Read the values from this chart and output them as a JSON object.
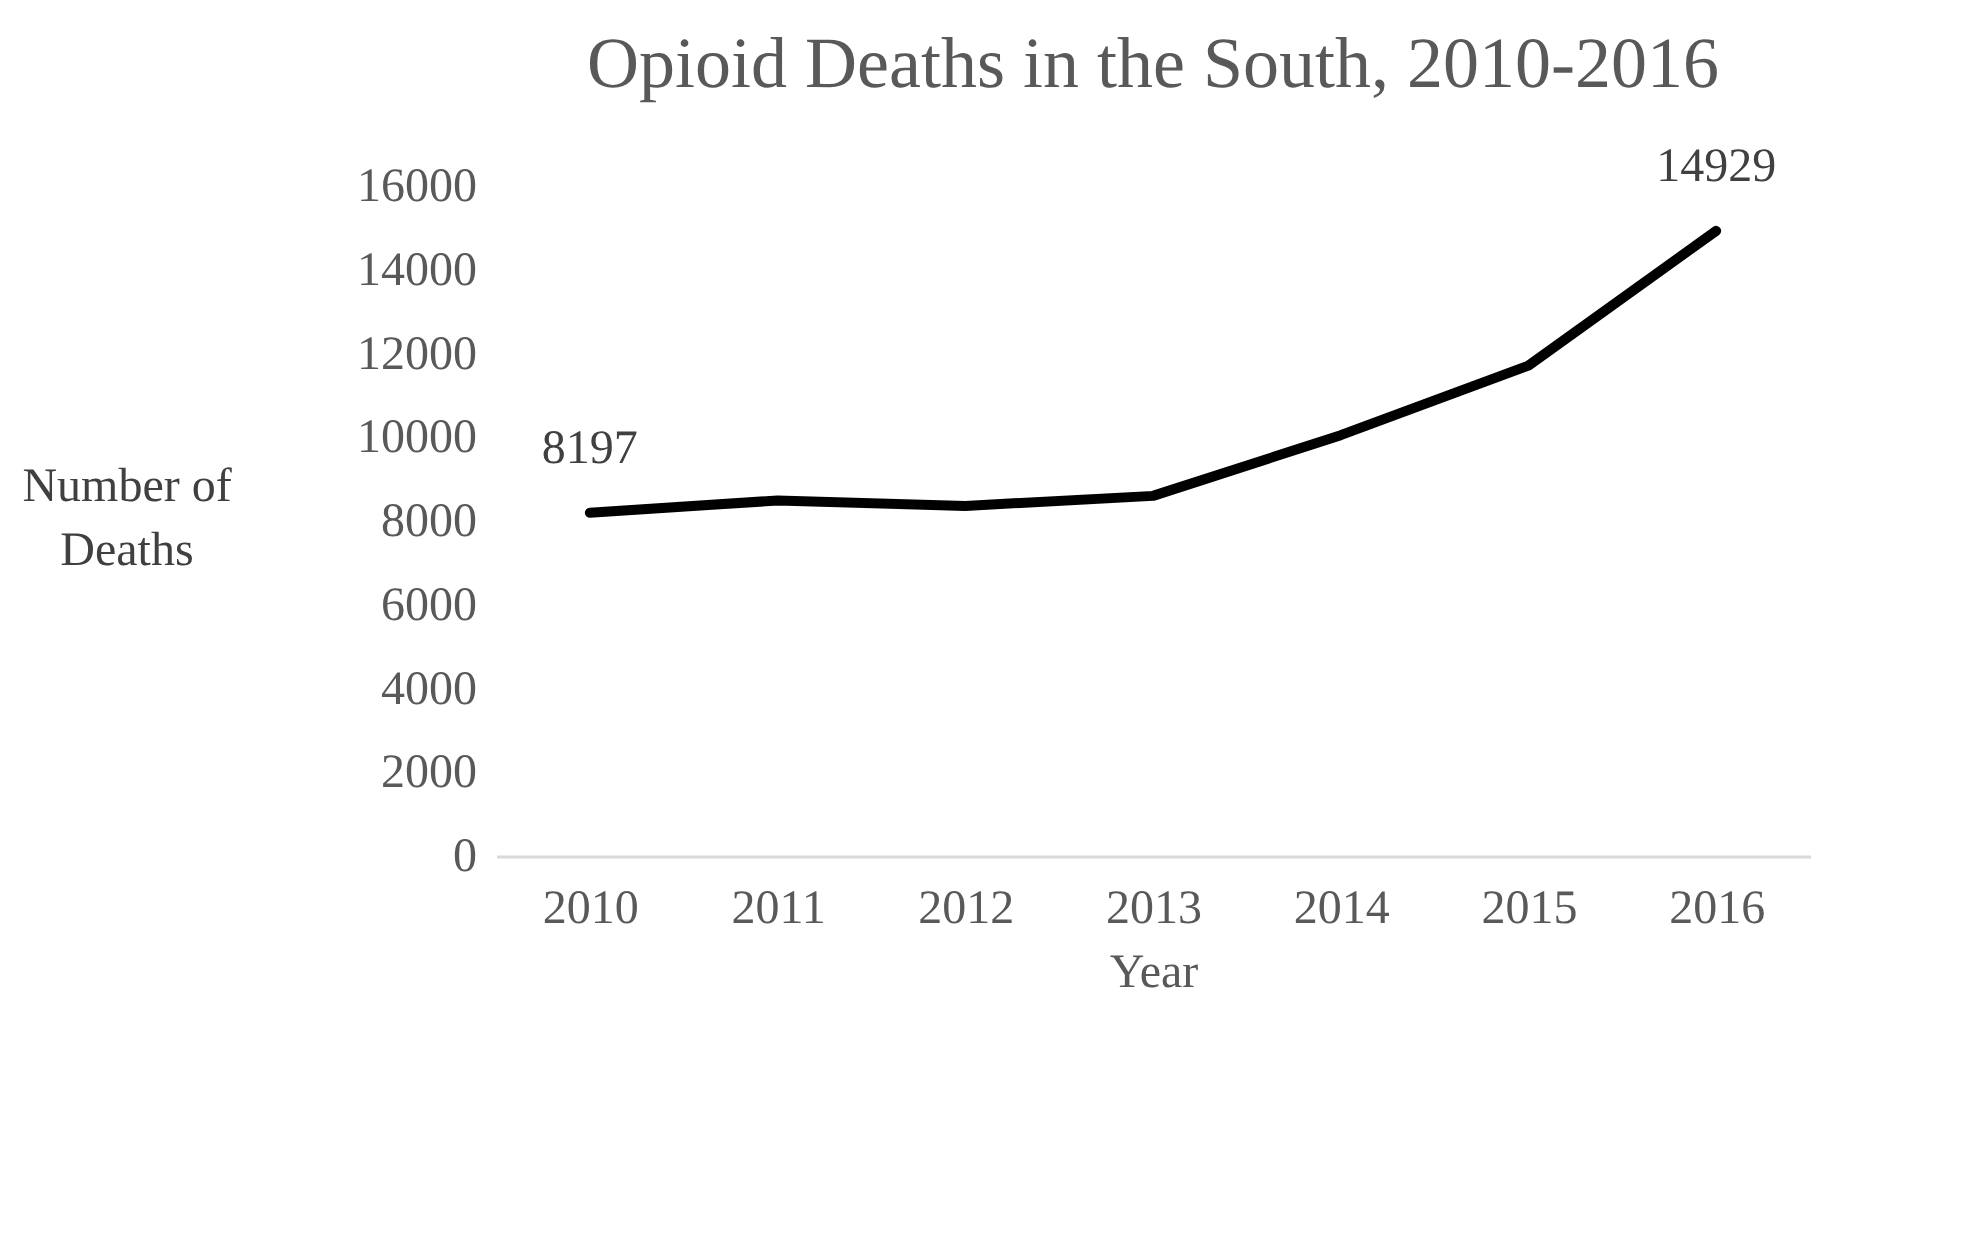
{
  "chart_data": {
    "type": "line",
    "title": "Opioid Deaths in the South, 2010-2016",
    "xlabel": "Year",
    "ylabel": "Number of Deaths",
    "categories": [
      "2010",
      "2011",
      "2012",
      "2013",
      "2014",
      "2015",
      "2016"
    ],
    "series": [
      {
        "color": "#000000",
        "values": [
          8197,
          8490,
          8360,
          8600,
          10050,
          11710,
          14929
        ]
      }
    ],
    "value_labels": [
      "8197",
      null,
      null,
      null,
      null,
      null,
      "14929"
    ],
    "ylim": [
      0,
      16000
    ],
    "yticks": [
      0,
      2000,
      4000,
      6000,
      8000,
      10000,
      12000,
      14000,
      16000
    ],
    "grid": false,
    "marker": "none",
    "line_style": "solid"
  }
}
